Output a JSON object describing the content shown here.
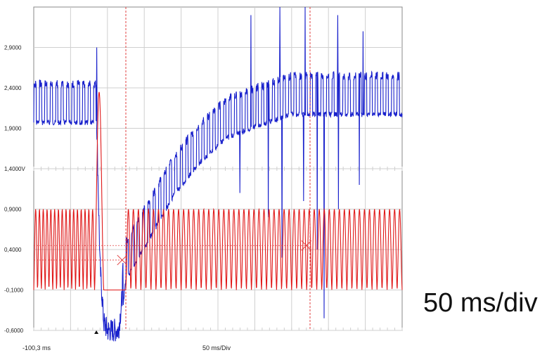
{
  "caption": "50 ms/div",
  "scope": {
    "time_start_label": "-100,3 ms",
    "time_scale_label": "50 ms/Div",
    "colors": {
      "trace1": "#1a22cc",
      "trace2": "#e01818",
      "grid": "#cfcfcf",
      "frame": "#888888",
      "cursor": "#e04040",
      "text": "#222222"
    }
  },
  "chart_data": {
    "type": "line",
    "title": "",
    "xlabel": "50 ms/Div",
    "ylabel": "",
    "ylim": [
      -0.6,
      3.4
    ],
    "y_tick_labels": [
      "2,9000",
      "2,4000",
      "1,9000",
      "1,4000V",
      "0,9000",
      "0,4000",
      "-0,1000",
      "-0,6000"
    ],
    "y_ticks": [
      2.9,
      2.4,
      1.9,
      1.4,
      0.9,
      0.4,
      -0.1,
      -0.6
    ],
    "x_start_label": "-100,3 ms",
    "x_divisions": 10,
    "grid": true,
    "series": [
      {
        "color": "#1a22cc",
        "anchors": [
          [
            0.0,
            2.15
          ],
          [
            0.17,
            2.15
          ],
          [
            0.18,
            0.2
          ],
          [
            0.19,
            -0.5
          ],
          [
            0.2,
            -0.6
          ],
          [
            0.23,
            -0.6
          ],
          [
            0.25,
            0.2
          ],
          [
            0.3,
            0.6
          ],
          [
            0.38,
            1.25
          ],
          [
            0.45,
            1.65
          ],
          [
            0.52,
            1.95
          ],
          [
            0.6,
            2.1
          ],
          [
            0.7,
            2.25
          ],
          [
            0.8,
            2.25
          ],
          [
            0.9,
            2.25
          ],
          [
            1.0,
            2.25
          ]
        ],
        "ripple_amplitude": 0.35,
        "ripple_cycles": 68,
        "spikes": [
          [
            0.17,
            2.9
          ],
          [
            0.59,
            3.3
          ],
          [
            0.67,
            3.4
          ],
          [
            0.74,
            3.4
          ],
          [
            0.83,
            3.3
          ],
          [
            0.9,
            3.1
          ],
          [
            0.56,
            1.1
          ],
          [
            0.64,
            0.8
          ],
          [
            0.68,
            0.3
          ],
          [
            0.74,
            1.0
          ],
          [
            0.78,
            0.4
          ],
          [
            0.8,
            -0.45
          ],
          [
            0.84,
            0.9
          ],
          [
            0.9,
            1.2
          ]
        ]
      },
      {
        "color": "#e01818",
        "segments": [
          {
            "from": 0.0,
            "to": 0.165,
            "low": -0.1,
            "high": 0.9,
            "cycles": 16
          },
          {
            "from": 0.165,
            "to": 0.19,
            "low": -0.1,
            "high": 2.35,
            "cycles": 1
          },
          {
            "from": 0.19,
            "to": 0.25,
            "low": -0.1,
            "high": -0.1,
            "cycles": 0
          },
          {
            "from": 0.25,
            "to": 1.0,
            "low": -0.1,
            "high": 0.9,
            "cycles": 55
          }
        ]
      }
    ],
    "cursors": [
      0.25,
      0.75
    ],
    "cursor_markers": [
      [
        0.24,
        0.27
      ],
      [
        0.74,
        0.45
      ]
    ]
  }
}
